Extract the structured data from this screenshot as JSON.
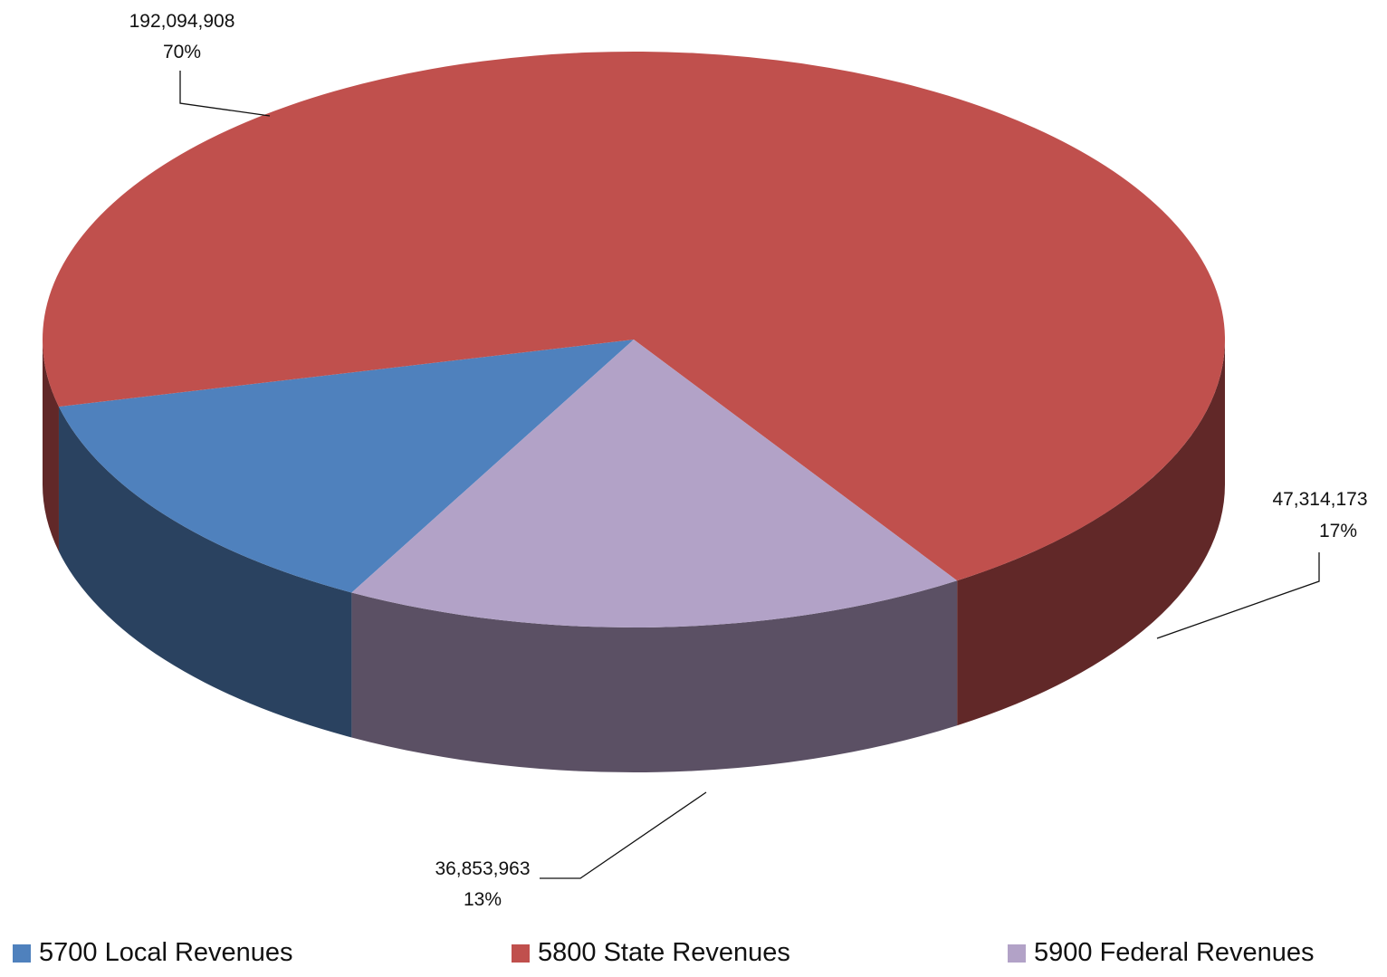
{
  "chart_data": {
    "type": "pie",
    "style": "3d",
    "categories": [
      "5700 Local Revenues",
      "5800 State Revenues",
      "5900 Federal Revenues"
    ],
    "values": [
      36853963,
      192094908,
      47314173
    ],
    "data_labels": [
      {
        "value": "36,853,963",
        "percent": "13%"
      },
      {
        "value": "192,094,908",
        "percent": "70%"
      },
      {
        "value": "47,314,173",
        "percent": "17%"
      }
    ],
    "colors": [
      "#4F81BD",
      "#C0504D",
      "#B2A2C7"
    ],
    "side_colors": [
      "#2A4260",
      "#612828",
      "#5B5064"
    ],
    "legend_position": "bottom"
  }
}
